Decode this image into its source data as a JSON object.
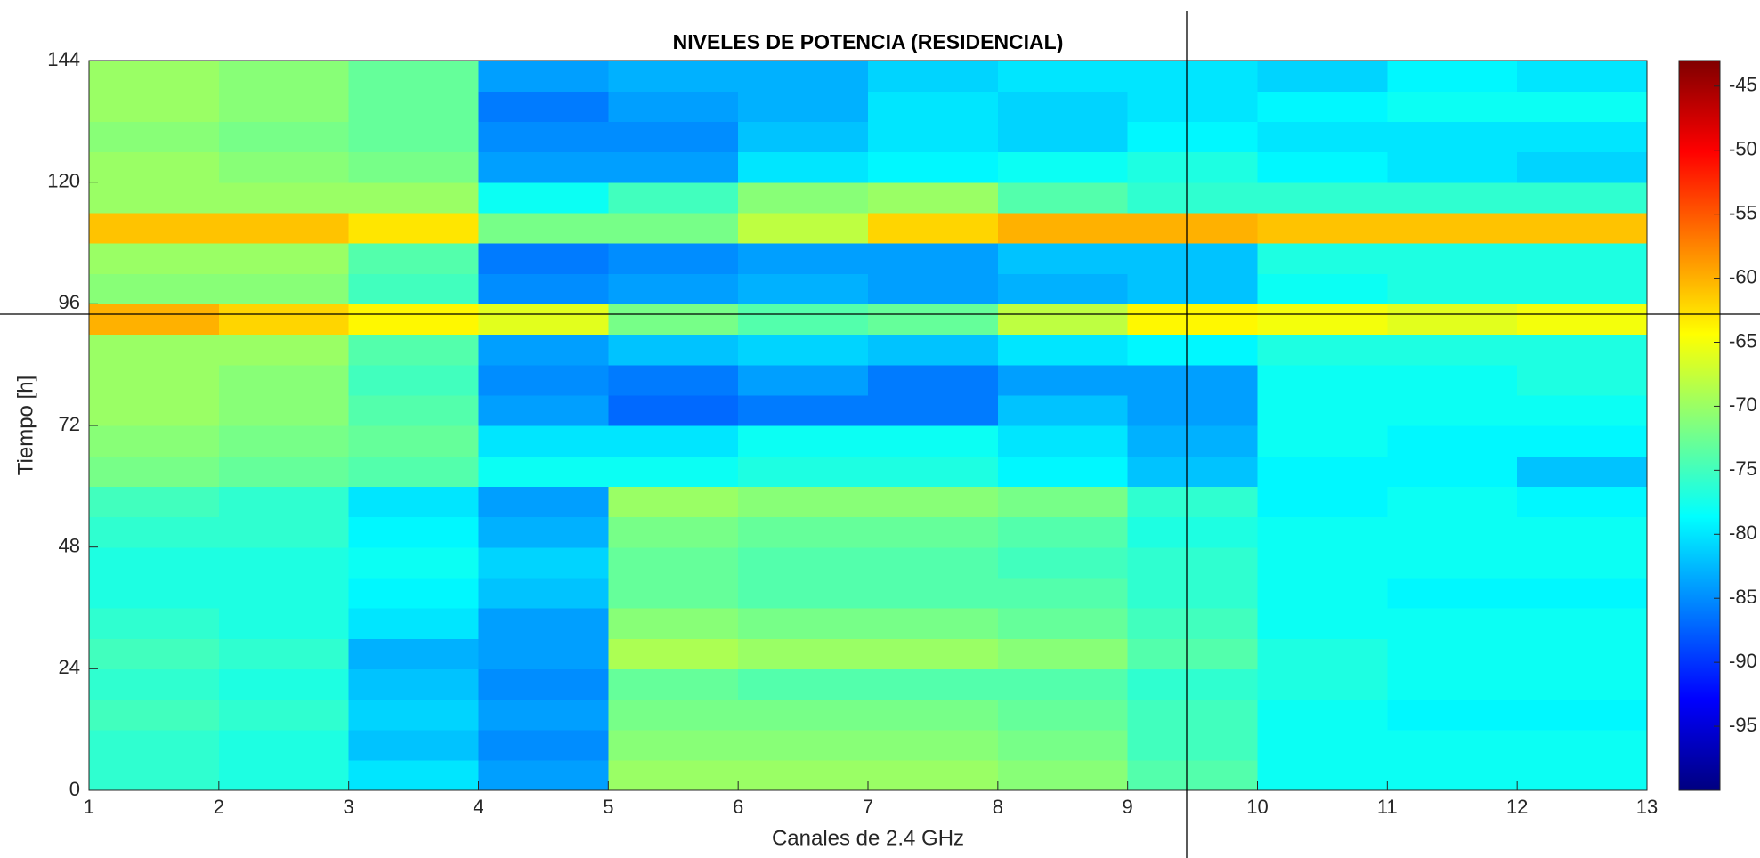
{
  "chart_data": {
    "type": "heatmap",
    "title": "NIVELES DE POTENCIA (RESIDENCIAL)",
    "xlabel": "Canales de 2.4 GHz",
    "ylabel": "Tiempo [h]",
    "xlim": [
      1,
      13
    ],
    "xticks": [
      1,
      2,
      3,
      4,
      5,
      6,
      7,
      8,
      9,
      10,
      11,
      12,
      13
    ],
    "ylim": [
      0,
      144
    ],
    "yticks": [
      0,
      24,
      48,
      72,
      96,
      120,
      144
    ],
    "clim": [
      -100,
      -43
    ],
    "cticks": [
      -45,
      -50,
      -55,
      -60,
      -65,
      -70,
      -75,
      -80,
      -85,
      -90,
      -95
    ],
    "colormap": "jet",
    "x": [
      1,
      2,
      3,
      4,
      5,
      6,
      7,
      8,
      9,
      10,
      11,
      12,
      13
    ],
    "y": [
      0,
      6,
      12,
      18,
      24,
      30,
      36,
      42,
      48,
      54,
      60,
      66,
      72,
      78,
      84,
      90,
      96,
      102,
      108,
      114,
      120,
      126,
      132,
      138,
      144
    ],
    "z": [
      [
        -76,
        -77,
        -80,
        -84,
        -70,
        -70,
        -70,
        -71,
        -74,
        -78,
        -78,
        -78
      ],
      [
        -76,
        -77,
        -82,
        -85,
        -71,
        -71,
        -71,
        -72,
        -75,
        -78,
        -78,
        -78
      ],
      [
        -75,
        -76,
        -81,
        -84,
        -72,
        -72,
        -72,
        -73,
        -75,
        -78,
        -79,
        -79
      ],
      [
        -76,
        -77,
        -82,
        -85,
        -73,
        -74,
        -74,
        -74,
        -76,
        -77,
        -78,
        -78
      ],
      [
        -75,
        -76,
        -83,
        -84,
        -69,
        -70,
        -70,
        -71,
        -74,
        -77,
        -78,
        -78
      ],
      [
        -76,
        -77,
        -80,
        -84,
        -71,
        -72,
        -72,
        -73,
        -75,
        -78,
        -78,
        -78
      ],
      [
        -77,
        -77,
        -79,
        -82,
        -73,
        -74,
        -74,
        -74,
        -76,
        -78,
        -79,
        -79
      ],
      [
        -77,
        -77,
        -78,
        -81,
        -73,
        -74,
        -74,
        -75,
        -76,
        -78,
        -78,
        -78
      ],
      [
        -76,
        -76,
        -79,
        -83,
        -72,
        -73,
        -73,
        -74,
        -77,
        -78,
        -78,
        -78
      ],
      [
        -75,
        -76,
        -80,
        -84,
        -70,
        -71,
        -71,
        -72,
        -76,
        -79,
        -78,
        -79
      ],
      [
        -72,
        -73,
        -74,
        -78,
        -78,
        -77,
        -77,
        -79,
        -82,
        -79,
        -79,
        -82
      ],
      [
        -71,
        -72,
        -73,
        -80,
        -80,
        -78,
        -78,
        -80,
        -83,
        -78,
        -79,
        -79
      ],
      [
        -70,
        -71,
        -74,
        -84,
        -87,
        -86,
        -86,
        -82,
        -84,
        -78,
        -78,
        -78
      ],
      [
        -70,
        -71,
        -75,
        -85,
        -86,
        -84,
        -86,
        -84,
        -84,
        -78,
        -78,
        -77
      ],
      [
        -70,
        -70,
        -74,
        -84,
        -82,
        -81,
        -82,
        -80,
        -79,
        -77,
        -77,
        -77
      ],
      [
        -60,
        -62,
        -64,
        -66,
        -72,
        -74,
        -73,
        -68,
        -64,
        -65,
        -66,
        -65
      ],
      [
        -71,
        -71,
        -75,
        -85,
        -84,
        -83,
        -84,
        -83,
        -82,
        -78,
        -77,
        -77
      ],
      [
        -70,
        -70,
        -74,
        -86,
        -85,
        -84,
        -84,
        -82,
        -82,
        -77,
        -77,
        -77
      ],
      [
        -61,
        -61,
        -63,
        -72,
        -72,
        -68,
        -62,
        -60,
        -60,
        -61,
        -61,
        -61
      ],
      [
        -70,
        -70,
        -70,
        -78,
        -75,
        -71,
        -70,
        -74,
        -76,
        -76,
        -76,
        -76
      ],
      [
        -70,
        -71,
        -72,
        -84,
        -84,
        -80,
        -79,
        -78,
        -77,
        -79,
        -80,
        -81
      ],
      [
        -71,
        -72,
        -73,
        -85,
        -85,
        -82,
        -80,
        -81,
        -79,
        -80,
        -80,
        -80
      ],
      [
        -70,
        -71,
        -73,
        -86,
        -84,
        -83,
        -80,
        -81,
        -80,
        -79,
        -78,
        -78
      ],
      [
        -70,
        -71,
        -73,
        -84,
        -83,
        -83,
        -81,
        -80,
        -80,
        -81,
        -79,
        -80
      ]
    ]
  }
}
